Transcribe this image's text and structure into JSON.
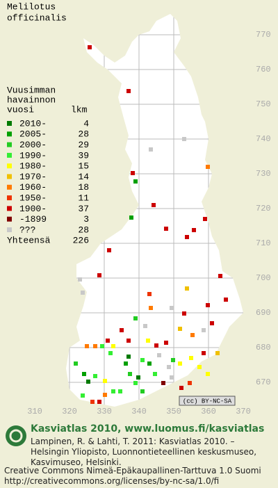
{
  "title_lines": [
    "Melilotus",
    "officinalis"
  ],
  "legend": {
    "header_lines": [
      "Vuusimman",
      "havainnon",
      "vuosi"
    ],
    "count_header": "lkm",
    "items": [
      {
        "label": "2010-",
        "count": 4,
        "color": "#007a00"
      },
      {
        "label": "2005-",
        "count": 28,
        "color": "#00a000"
      },
      {
        "label": "2000-",
        "count": 29,
        "color": "#22cc22"
      },
      {
        "label": "1990-",
        "count": 39,
        "color": "#33ee33"
      },
      {
        "label": "1980-",
        "count": 15,
        "color": "#ffff00"
      },
      {
        "label": "1970-",
        "count": 14,
        "color": "#f0c000"
      },
      {
        "label": "1960-",
        "count": 18,
        "color": "#ff7a00"
      },
      {
        "label": "1950-",
        "count": 11,
        "color": "#ee3300"
      },
      {
        "label": "1900-",
        "count": 37,
        "color": "#cc0000"
      },
      {
        "label": "-1899",
        "count": 3,
        "color": "#800000"
      },
      {
        "label": "???",
        "count": 28,
        "color": "#c8c8c8"
      }
    ],
    "total_label": "Yhteensä",
    "total": 226
  },
  "grid": {
    "north": [
      770,
      760,
      750,
      740,
      730,
      720,
      710,
      700,
      690,
      680,
      670
    ],
    "east": [
      310,
      320,
      330,
      340,
      350,
      360,
      370
    ]
  },
  "license_badge": "(cc) BY-NC-SA",
  "footer": {
    "heading": "Kasviatlas 2010, www.luomus.fi/kasviatlas",
    "citation_lines": [
      "Lampinen, R. & Lahti, T. 2011: Kasviatlas 2010. –",
      "Helsingin Yliopisto, Luonnontieteellinen keskusmuseo,",
      "Kasvimuseo, Helsinki."
    ],
    "license_lines": [
      "Creative Commons Nimeä-Epäkaupallinen-Tarttuva 1.0 Suomi",
      "http://creativecommons.org/licenses/by-nc-sa/1.0/fi"
    ]
  }
}
